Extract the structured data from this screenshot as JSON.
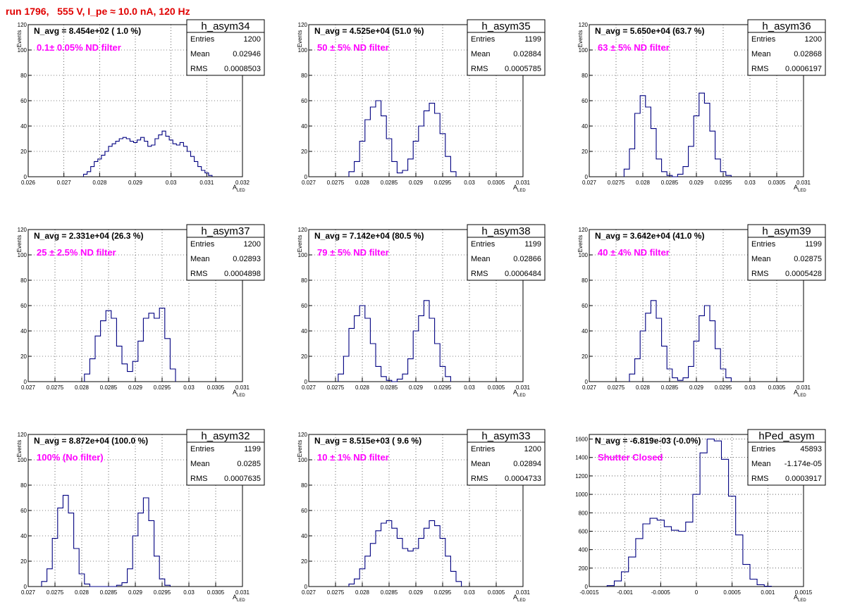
{
  "header": {
    "run_title": "run 1796,   555 V, I_pe ≈ 10.0 nA, 120 Hz"
  },
  "colors": {
    "histogram": "#000080",
    "annotation": "#ff00ff",
    "title": "#e00000",
    "grid": "#000000"
  },
  "chart_data": [
    {
      "type": "bar",
      "name": "h_asym34",
      "navg": "N_avg = 8.454e+02 ( 1.0 %)",
      "filter": "0.1± 0.05% ND filter",
      "stats": {
        "entries": "1200",
        "mean": "0.02946",
        "rms": "0.0008503"
      },
      "xlim": [
        0.026,
        0.032
      ],
      "ylim": [
        0,
        120
      ],
      "xlabel": "A_LED",
      "ylabel": "Events",
      "xticks": [
        0.026,
        0.027,
        0.028,
        0.029,
        0.03,
        0.031,
        0.032
      ],
      "xtick_labels": [
        "0.026",
        "0.027",
        "0.028",
        "0.029",
        "0.03",
        "0.031",
        "0.032"
      ],
      "yticks": [
        0,
        20,
        40,
        60,
        80,
        100,
        120
      ],
      "ytick_labels": [
        "0",
        "20",
        "40",
        "60",
        "80",
        "100",
        "120"
      ],
      "x": [
        0.0276,
        0.0277,
        0.0278,
        0.0279,
        0.028,
        0.0281,
        0.0282,
        0.0283,
        0.0284,
        0.0285,
        0.0286,
        0.0287,
        0.0288,
        0.0289,
        0.029,
        0.0291,
        0.0292,
        0.0293,
        0.0294,
        0.0295,
        0.0296,
        0.0297,
        0.0298,
        0.0299,
        0.03,
        0.0301,
        0.0302,
        0.0303,
        0.0304,
        0.0305,
        0.0306,
        0.0307,
        0.0308,
        0.0309,
        0.031,
        0.0311
      ],
      "y": [
        2,
        4,
        8,
        12,
        14,
        17,
        20,
        24,
        26,
        28,
        30,
        31,
        30,
        28,
        27,
        29,
        31,
        28,
        24,
        25,
        30,
        33,
        36,
        32,
        29,
        26,
        25,
        27,
        24,
        20,
        16,
        12,
        8,
        5,
        3,
        1
      ]
    },
    {
      "type": "bar",
      "name": "h_asym35",
      "navg": "N_avg = 4.525e+04 (51.0 %)",
      "filter": "50 ± 5% ND filter",
      "stats": {
        "entries": "1199",
        "mean": "0.02884",
        "rms": "0.0005785"
      },
      "xlim": [
        0.027,
        0.031
      ],
      "ylim": [
        0,
        120
      ],
      "xlabel": "A_LED",
      "ylabel": "Events",
      "xticks": [
        0.027,
        0.0275,
        0.028,
        0.0285,
        0.029,
        0.0295,
        0.03,
        0.0305,
        0.031
      ],
      "xtick_labels": [
        "0.027",
        "0.0275",
        "0.028",
        "0.0285",
        "0.029",
        "0.0295",
        "0.03",
        "0.0305",
        "0.031"
      ],
      "yticks": [
        0,
        20,
        40,
        60,
        80,
        100,
        120
      ],
      "ytick_labels": [
        "0",
        "20",
        "40",
        "60",
        "80",
        "100",
        "120"
      ],
      "x": [
        0.0278,
        0.0279,
        0.028,
        0.0281,
        0.0282,
        0.0283,
        0.0284,
        0.0285,
        0.0286,
        0.0287,
        0.0288,
        0.0289,
        0.029,
        0.0291,
        0.0292,
        0.0293,
        0.0294,
        0.0295,
        0.0296,
        0.0297
      ],
      "y": [
        4,
        12,
        28,
        45,
        55,
        60,
        48,
        30,
        12,
        3,
        5,
        14,
        28,
        40,
        52,
        58,
        50,
        34,
        16,
        4
      ]
    },
    {
      "type": "bar",
      "name": "h_asym36",
      "navg": "N_avg = 5.650e+04 (63.7 %)",
      "filter": "63 ± 5% ND filter",
      "stats": {
        "entries": "1200",
        "mean": "0.02868",
        "rms": "0.0006197"
      },
      "xlim": [
        0.027,
        0.031
      ],
      "ylim": [
        0,
        120
      ],
      "xlabel": "A_LED",
      "ylabel": "Events",
      "xticks": [
        0.027,
        0.0275,
        0.028,
        0.0285,
        0.029,
        0.0295,
        0.03,
        0.0305,
        0.031
      ],
      "xtick_labels": [
        "0.027",
        "0.0275",
        "0.028",
        "0.0285",
        "0.029",
        "0.0295",
        "0.03",
        "0.0305",
        "0.031"
      ],
      "yticks": [
        0,
        20,
        40,
        60,
        80,
        100,
        120
      ],
      "ytick_labels": [
        "0",
        "20",
        "40",
        "60",
        "80",
        "100",
        "120"
      ],
      "x": [
        0.0277,
        0.0278,
        0.0279,
        0.028,
        0.0281,
        0.0282,
        0.0283,
        0.0284,
        0.0285,
        0.0286,
        0.0287,
        0.0288,
        0.0289,
        0.029,
        0.0291,
        0.0292,
        0.0293,
        0.0294,
        0.0295,
        0.0296
      ],
      "y": [
        6,
        22,
        50,
        64,
        55,
        38,
        14,
        4,
        1,
        0,
        2,
        8,
        24,
        48,
        66,
        58,
        36,
        14,
        4,
        1
      ]
    },
    {
      "type": "bar",
      "name": "h_asym37",
      "navg": "N_avg = 2.331e+04 (26.3 %)",
      "filter": "25 ± 2.5% ND filter",
      "stats": {
        "entries": "1200",
        "mean": "0.02893",
        "rms": "0.0004898"
      },
      "xlim": [
        0.027,
        0.031
      ],
      "ylim": [
        0,
        120
      ],
      "xlabel": "A_LED",
      "ylabel": "Events",
      "xticks": [
        0.027,
        0.0275,
        0.028,
        0.0285,
        0.029,
        0.0295,
        0.03,
        0.0305,
        0.031
      ],
      "xtick_labels": [
        "0.027",
        "0.0275",
        "0.028",
        "0.0285",
        "0.029",
        "0.0295",
        "0.03",
        "0.0305",
        "0.031"
      ],
      "yticks": [
        0,
        20,
        40,
        60,
        80,
        100,
        120
      ],
      "ytick_labels": [
        "0",
        "20",
        "40",
        "60",
        "80",
        "100",
        "120"
      ],
      "x": [
        0.0281,
        0.0282,
        0.0283,
        0.0284,
        0.0285,
        0.0286,
        0.0287,
        0.0288,
        0.0289,
        0.029,
        0.0291,
        0.0292,
        0.0293,
        0.0294,
        0.0295,
        0.0296,
        0.0297
      ],
      "y": [
        6,
        18,
        36,
        48,
        56,
        50,
        28,
        14,
        8,
        16,
        32,
        50,
        54,
        50,
        58,
        34,
        10
      ]
    },
    {
      "type": "bar",
      "name": "h_asym38",
      "navg": "N_avg = 7.142e+04 (80.5 %)",
      "filter": "79 ± 5% ND filter",
      "stats": {
        "entries": "1199",
        "mean": "0.02866",
        "rms": "0.0006484"
      },
      "xlim": [
        0.027,
        0.031
      ],
      "ylim": [
        0,
        120
      ],
      "xlabel": "A_LED",
      "ylabel": "Events",
      "xticks": [
        0.027,
        0.0275,
        0.028,
        0.0285,
        0.029,
        0.0295,
        0.03,
        0.0305,
        0.031
      ],
      "xtick_labels": [
        "0.027",
        "0.0275",
        "0.028",
        "0.0285",
        "0.029",
        "0.0295",
        "0.03",
        "0.0305",
        "0.031"
      ],
      "yticks": [
        0,
        20,
        40,
        60,
        80,
        100,
        120
      ],
      "ytick_labels": [
        "0",
        "20",
        "40",
        "60",
        "80",
        "100",
        "120"
      ],
      "x": [
        0.0276,
        0.0277,
        0.0278,
        0.0279,
        0.028,
        0.0281,
        0.0282,
        0.0283,
        0.0284,
        0.0285,
        0.0286,
        0.0287,
        0.0288,
        0.0289,
        0.029,
        0.0291,
        0.0292,
        0.0293,
        0.0294,
        0.0295,
        0.0296
      ],
      "y": [
        6,
        20,
        42,
        52,
        60,
        50,
        30,
        12,
        4,
        1,
        0,
        2,
        6,
        18,
        40,
        52,
        64,
        50,
        30,
        12,
        4
      ]
    },
    {
      "type": "bar",
      "name": "h_asym39",
      "navg": "N_avg = 3.642e+04 (41.0 %)",
      "filter": "40 ± 4% ND filter",
      "stats": {
        "entries": "1199",
        "mean": "0.02875",
        "rms": "0.0005428"
      },
      "xlim": [
        0.027,
        0.031
      ],
      "ylim": [
        0,
        120
      ],
      "xlabel": "A_LED",
      "ylabel": "Events",
      "xticks": [
        0.027,
        0.0275,
        0.028,
        0.0285,
        0.029,
        0.0295,
        0.03,
        0.0305,
        0.031
      ],
      "xtick_labels": [
        "0.027",
        "0.0275",
        "0.028",
        "0.0285",
        "0.029",
        "0.0295",
        "0.03",
        "0.0305",
        "0.031"
      ],
      "yticks": [
        0,
        20,
        40,
        60,
        80,
        100,
        120
      ],
      "ytick_labels": [
        "0",
        "20",
        "40",
        "60",
        "80",
        "100",
        "120"
      ],
      "x": [
        0.0278,
        0.0279,
        0.028,
        0.0281,
        0.0282,
        0.0283,
        0.0284,
        0.0285,
        0.0286,
        0.0287,
        0.0288,
        0.0289,
        0.029,
        0.0291,
        0.0292,
        0.0293,
        0.0294,
        0.0295,
        0.0296
      ],
      "y": [
        6,
        18,
        40,
        54,
        64,
        50,
        28,
        10,
        3,
        1,
        3,
        12,
        32,
        52,
        60,
        48,
        26,
        10,
        3
      ]
    },
    {
      "type": "bar",
      "name": "h_asym32",
      "navg": "N_avg = 8.872e+04 (100.0 %)",
      "filter": "100% (No filter)",
      "stats": {
        "entries": "1199",
        "mean": "0.0285",
        "rms": "0.0007635"
      },
      "xlim": [
        0.027,
        0.031
      ],
      "ylim": [
        0,
        120
      ],
      "xlabel": "A_LED",
      "ylabel": "Events",
      "xticks": [
        0.027,
        0.0275,
        0.028,
        0.0285,
        0.029,
        0.0295,
        0.03,
        0.0305,
        0.031
      ],
      "xtick_labels": [
        "0.027",
        "0.0275",
        "0.028",
        "0.0285",
        "0.029",
        "0.0295",
        "0.03",
        "0.0305",
        "0.031"
      ],
      "yticks": [
        0,
        20,
        40,
        60,
        80,
        100,
        120
      ],
      "ytick_labels": [
        "0",
        "20",
        "40",
        "60",
        "80",
        "100",
        "120"
      ],
      "x": [
        0.0273,
        0.0274,
        0.0275,
        0.0276,
        0.0277,
        0.0278,
        0.0279,
        0.028,
        0.0281,
        0.0282,
        0.0283,
        0.0284,
        0.0285,
        0.0286,
        0.0287,
        0.0288,
        0.0289,
        0.029,
        0.0291,
        0.0292,
        0.0293,
        0.0294,
        0.0295,
        0.0296
      ],
      "y": [
        4,
        14,
        38,
        62,
        72,
        58,
        30,
        10,
        2,
        0,
        0,
        0,
        0,
        0,
        1,
        3,
        14,
        40,
        58,
        70,
        52,
        24,
        6,
        1
      ]
    },
    {
      "type": "bar",
      "name": "h_asym33",
      "navg": "N_avg = 8.515e+03 ( 9.6 %)",
      "filter": "10 ± 1% ND filter",
      "stats": {
        "entries": "1200",
        "mean": "0.02894",
        "rms": "0.0004733"
      },
      "xlim": [
        0.027,
        0.031
      ],
      "ylim": [
        0,
        120
      ],
      "xlabel": "A_LED",
      "ylabel": "Events",
      "xticks": [
        0.027,
        0.0275,
        0.028,
        0.0285,
        0.029,
        0.0295,
        0.03,
        0.0305,
        0.031
      ],
      "xtick_labels": [
        "0.027",
        "0.0275",
        "0.028",
        "0.0285",
        "0.029",
        "0.0295",
        "0.03",
        "0.0305",
        "0.031"
      ],
      "yticks": [
        0,
        20,
        40,
        60,
        80,
        100,
        120
      ],
      "ytick_labels": [
        "0",
        "20",
        "40",
        "60",
        "80",
        "100",
        "120"
      ],
      "x": [
        0.0278,
        0.0279,
        0.028,
        0.0281,
        0.0282,
        0.0283,
        0.0284,
        0.0285,
        0.0286,
        0.0287,
        0.0288,
        0.0289,
        0.029,
        0.0291,
        0.0292,
        0.0293,
        0.0294,
        0.0295,
        0.0296,
        0.0297,
        0.0298
      ],
      "y": [
        2,
        6,
        14,
        24,
        34,
        44,
        50,
        52,
        46,
        38,
        30,
        28,
        30,
        38,
        46,
        52,
        48,
        38,
        24,
        12,
        4
      ]
    },
    {
      "type": "bar",
      "name": "hPed_asym",
      "navg": "N_avg = -6.819e-03 (-0.0%)",
      "filter": "Shutter Closed",
      "stats": {
        "entries": "45893",
        "mean": "-1.174e-05",
        "rms": "0.0003917"
      },
      "xlim": [
        -0.0015,
        0.0015
      ],
      "ylim": [
        0,
        1650
      ],
      "xlabel": "A_LED",
      "ylabel": "",
      "xticks": [
        -0.0015,
        -0.001,
        -0.0005,
        0,
        0.0005,
        0.001,
        0.0015
      ],
      "xtick_labels": [
        "-0.0015",
        "-0.001",
        "-0.0005",
        "0",
        "0.0005",
        "0.001",
        "0.0015"
      ],
      "yticks": [
        0,
        200,
        400,
        600,
        800,
        1000,
        1200,
        1400,
        1600
      ],
      "ytick_labels": [
        "0",
        "200",
        "400",
        "600",
        "800",
        "1000",
        "1200",
        "1400",
        "1600"
      ],
      "x": [
        -0.0012,
        -0.0011,
        -0.001,
        -0.0009,
        -0.0008,
        -0.0007,
        -0.0006,
        -0.0005,
        -0.0004,
        -0.0003,
        -0.0002,
        -0.0001,
        0,
        0.0001,
        0.0002,
        0.0003,
        0.0004,
        0.0005,
        0.0006,
        0.0007,
        0.0008,
        0.0009,
        0.001
      ],
      "y": [
        10,
        60,
        160,
        320,
        520,
        680,
        740,
        720,
        650,
        610,
        600,
        700,
        1000,
        1450,
        1600,
        1580,
        1380,
        980,
        560,
        240,
        80,
        20,
        4
      ]
    }
  ]
}
